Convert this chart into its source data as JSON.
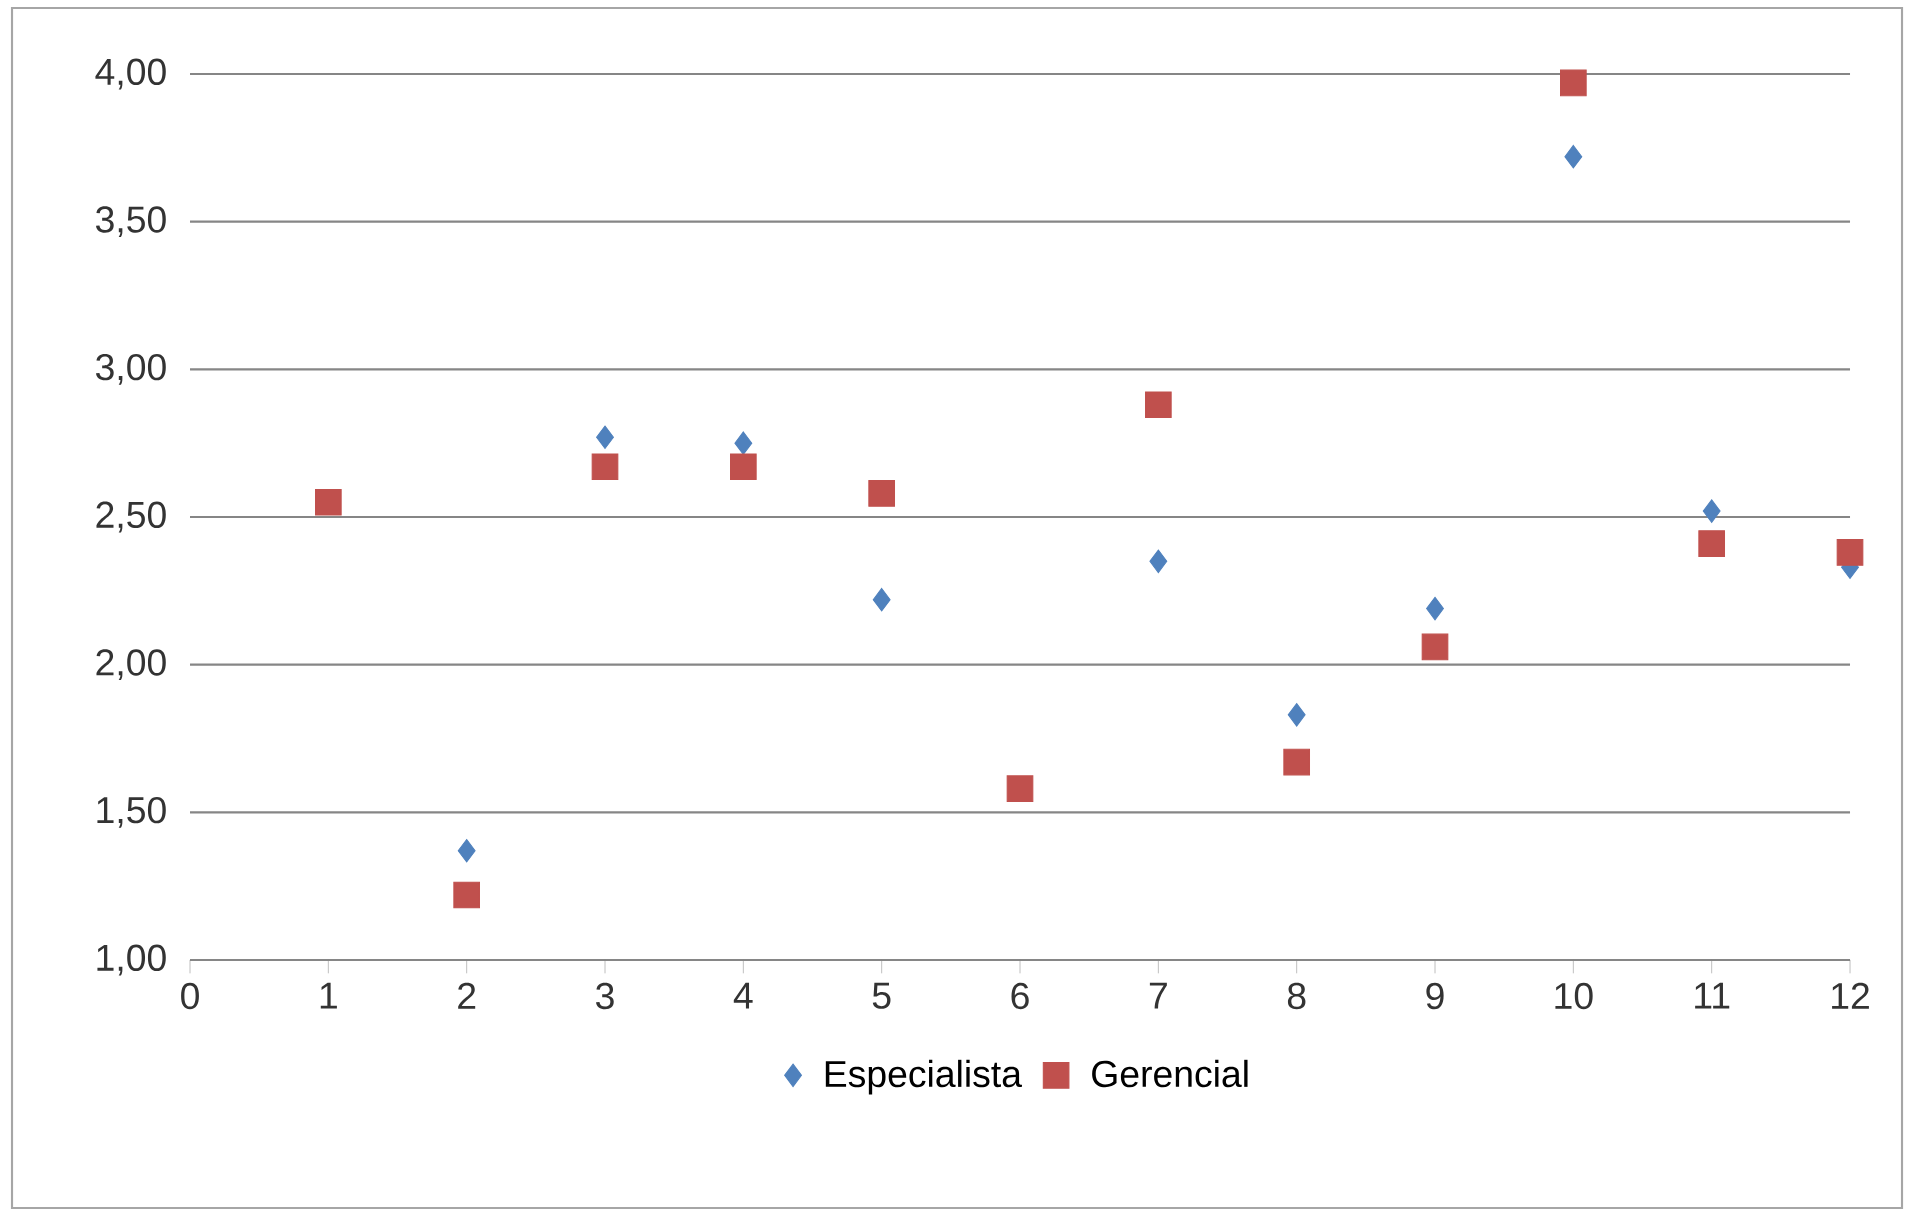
{
  "chart_data": {
    "type": "scatter",
    "x": [
      1,
      2,
      3,
      4,
      5,
      6,
      7,
      8,
      9,
      10,
      11,
      12
    ],
    "series": [
      {
        "name": "Especialista",
        "color": "#4f81bd",
        "marker": "diamond",
        "values": [
          null,
          1.37,
          2.77,
          2.75,
          2.22,
          null,
          2.35,
          1.83,
          2.19,
          3.72,
          2.52,
          2.33
        ]
      },
      {
        "name": "Gerencial",
        "color": "#c0504d",
        "marker": "square",
        "values": [
          2.55,
          1.22,
          2.67,
          2.67,
          2.58,
          1.58,
          2.88,
          1.67,
          2.06,
          3.97,
          2.41,
          2.38
        ]
      }
    ],
    "xlim": [
      0,
      12
    ],
    "xticks": [
      0,
      1,
      2,
      3,
      4,
      5,
      6,
      7,
      8,
      9,
      10,
      11,
      12
    ],
    "ylim": [
      1,
      4
    ],
    "yticks": [
      {
        "value": 1,
        "label": "1,00"
      },
      {
        "value": 1.5,
        "label": "1,50"
      },
      {
        "value": 2,
        "label": "2,00"
      },
      {
        "value": 2.5,
        "label": "2,50"
      },
      {
        "value": 3,
        "label": "3,00"
      },
      {
        "value": 3.5,
        "label": "3,50"
      },
      {
        "value": 4,
        "label": "4,00"
      }
    ],
    "grid": "y",
    "legend": "bottom"
  }
}
